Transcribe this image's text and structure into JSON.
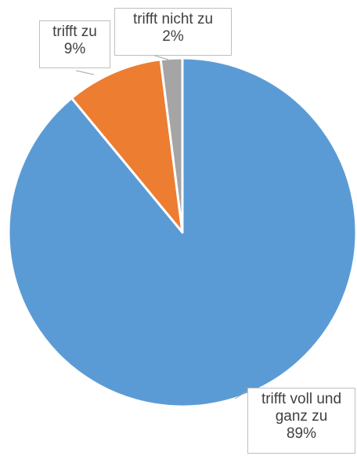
{
  "chart_data": {
    "type": "pie",
    "title": "",
    "start_angle_deg": 0,
    "direction": "clockwise",
    "slices": [
      {
        "category": "trifft voll und ganz zu",
        "value": 89,
        "percent_label": "89%",
        "color": "#5b9bd5"
      },
      {
        "category": "trifft zu",
        "value": 9,
        "percent_label": "9%",
        "color": "#ed7d31"
      },
      {
        "category": "trifft nicht zu",
        "value": 2,
        "percent_label": "2%",
        "color": "#a5a5a5"
      }
    ]
  }
}
